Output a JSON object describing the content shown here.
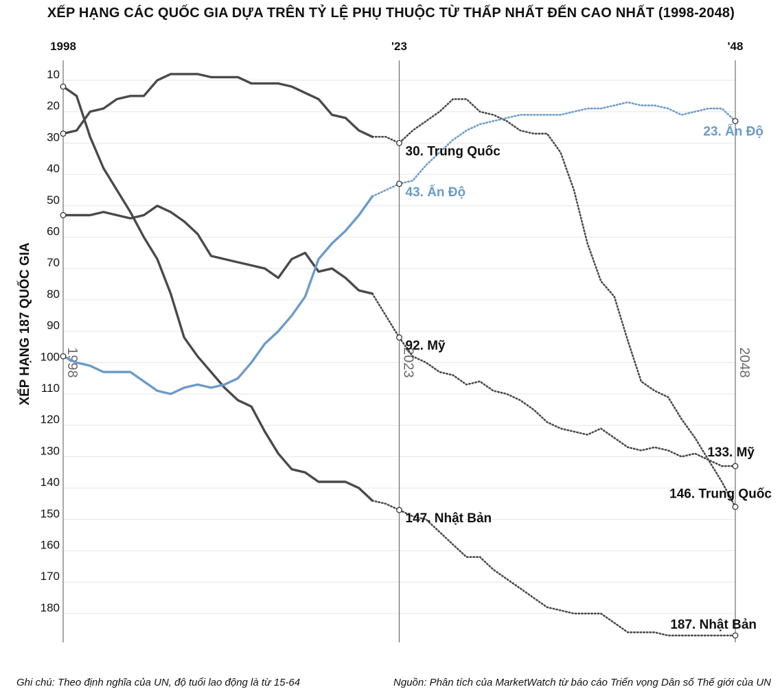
{
  "chart_data": {
    "type": "line",
    "title": "XẾP HẠNG CÁC QUỐC GIA DỰA TRÊN TỶ LỆ PHỤ THUỘC TỪ THẤP NHẤT ĐẾN CAO NHẤT (1998-2048)",
    "ylabel": "XẾP HẠNG 187 QUỐC GIA",
    "ylim": [
      5,
      188
    ],
    "xlim": [
      1998,
      2048
    ],
    "y_reversed": true,
    "y_ticks": [
      10,
      20,
      30,
      40,
      50,
      60,
      70,
      80,
      90,
      100,
      110,
      120,
      130,
      140,
      150,
      160,
      170,
      180
    ],
    "grid": true,
    "top_axis_labels": [
      {
        "x": 1998,
        "label": "1998"
      },
      {
        "x": 2023,
        "label": "'23"
      },
      {
        "x": 2048,
        "label": "'48"
      }
    ],
    "vertical_markers": [
      {
        "x": 1998,
        "label": "1998"
      },
      {
        "x": 2023,
        "label": "2023"
      },
      {
        "x": 2048,
        "label": "2048"
      }
    ],
    "series": [
      {
        "color": "#4a4a4a",
        "historical": [
          [
            1998,
            27
          ],
          [
            1999,
            26
          ],
          [
            2000,
            20
          ],
          [
            2001,
            19
          ],
          [
            2002,
            16
          ],
          [
            2003,
            15
          ],
          [
            2004,
            15
          ],
          [
            2005,
            10
          ],
          [
            2006,
            8
          ],
          [
            2007,
            8
          ],
          [
            2008,
            8
          ],
          [
            2009,
            9
          ],
          [
            2010,
            9
          ],
          [
            2011,
            9
          ],
          [
            2012,
            11
          ],
          [
            2013,
            11
          ],
          [
            2014,
            11
          ],
          [
            2015,
            12
          ],
          [
            2016,
            14
          ],
          [
            2017,
            16
          ],
          [
            2018,
            21
          ],
          [
            2019,
            22
          ],
          [
            2020,
            26
          ],
          [
            2021,
            28
          ]
        ],
        "projection": [
          [
            2021,
            28
          ],
          [
            2022,
            28
          ],
          [
            2023,
            30
          ],
          [
            2024,
            26
          ],
          [
            2025,
            23
          ],
          [
            2026,
            20
          ],
          [
            2027,
            16
          ],
          [
            2028,
            16
          ],
          [
            2029,
            20
          ],
          [
            2030,
            21
          ],
          [
            2031,
            23
          ],
          [
            2032,
            26
          ],
          [
            2033,
            27
          ],
          [
            2034,
            27
          ],
          [
            2035,
            33
          ],
          [
            2036,
            45
          ],
          [
            2037,
            62
          ],
          [
            2038,
            74
          ],
          [
            2039,
            79
          ],
          [
            2040,
            93
          ],
          [
            2041,
            106
          ],
          [
            2042,
            109
          ],
          [
            2043,
            111
          ],
          [
            2044,
            118
          ],
          [
            2045,
            124
          ],
          [
            2046,
            131
          ],
          [
            2047,
            138
          ],
          [
            2048,
            146
          ]
        ],
        "labels": [
          {
            "x": 2023,
            "y": 30,
            "text": "30. Trung Quốc"
          },
          {
            "x": 2048,
            "y": 146,
            "text": "146. Trung Quốc"
          }
        ]
      },
      {
        "color": "#4a4a4a",
        "historical": [
          [
            1998,
            53
          ],
          [
            1999,
            53
          ],
          [
            2000,
            53
          ],
          [
            2001,
            52
          ],
          [
            2002,
            53
          ],
          [
            2003,
            54
          ],
          [
            2004,
            53
          ],
          [
            2005,
            50
          ],
          [
            2006,
            52
          ],
          [
            2007,
            55
          ],
          [
            2008,
            59
          ],
          [
            2009,
            66
          ],
          [
            2010,
            67
          ],
          [
            2011,
            68
          ],
          [
            2012,
            69
          ],
          [
            2013,
            70
          ],
          [
            2014,
            73
          ],
          [
            2015,
            67
          ],
          [
            2016,
            65
          ],
          [
            2017,
            71
          ],
          [
            2018,
            70
          ],
          [
            2019,
            73
          ],
          [
            2020,
            77
          ],
          [
            2021,
            78
          ]
        ],
        "projection": [
          [
            2021,
            78
          ],
          [
            2022,
            85
          ],
          [
            2023,
            92
          ],
          [
            2024,
            98
          ],
          [
            2025,
            100
          ],
          [
            2026,
            103
          ],
          [
            2027,
            104
          ],
          [
            2028,
            107
          ],
          [
            2029,
            106
          ],
          [
            2030,
            109
          ],
          [
            2031,
            110
          ],
          [
            2032,
            112
          ],
          [
            2033,
            115
          ],
          [
            2034,
            119
          ],
          [
            2035,
            121
          ],
          [
            2036,
            122
          ],
          [
            2037,
            123
          ],
          [
            2038,
            121
          ],
          [
            2039,
            124
          ],
          [
            2040,
            127
          ],
          [
            2041,
            128
          ],
          [
            2042,
            127
          ],
          [
            2043,
            128
          ],
          [
            2044,
            130
          ],
          [
            2045,
            129
          ],
          [
            2046,
            131
          ],
          [
            2047,
            133
          ],
          [
            2048,
            133
          ]
        ],
        "labels": [
          {
            "x": 2023,
            "y": 92,
            "text": "92. Mỹ"
          },
          {
            "x": 2048,
            "y": 133,
            "text": "133. Mỹ"
          }
        ]
      },
      {
        "color": "#4a4a4a",
        "historical": [
          [
            1998,
            12
          ],
          [
            1999,
            15
          ],
          [
            2000,
            28
          ],
          [
            2001,
            38
          ],
          [
            2002,
            45
          ],
          [
            2003,
            52
          ],
          [
            2004,
            60
          ],
          [
            2005,
            67
          ],
          [
            2006,
            78
          ],
          [
            2007,
            92
          ],
          [
            2008,
            98
          ],
          [
            2009,
            103
          ],
          [
            2010,
            108
          ],
          [
            2011,
            112
          ],
          [
            2012,
            114
          ],
          [
            2013,
            122
          ],
          [
            2014,
            129
          ],
          [
            2015,
            134
          ],
          [
            2016,
            135
          ],
          [
            2017,
            138
          ],
          [
            2018,
            138
          ],
          [
            2019,
            138
          ],
          [
            2020,
            140
          ],
          [
            2021,
            144
          ]
        ],
        "projection": [
          [
            2021,
            144
          ],
          [
            2022,
            145
          ],
          [
            2023,
            147
          ],
          [
            2024,
            149
          ],
          [
            2025,
            150
          ],
          [
            2026,
            154
          ],
          [
            2027,
            158
          ],
          [
            2028,
            162
          ],
          [
            2029,
            162
          ],
          [
            2030,
            166
          ],
          [
            2031,
            169
          ],
          [
            2032,
            172
          ],
          [
            2033,
            175
          ],
          [
            2034,
            178
          ],
          [
            2035,
            179
          ],
          [
            2036,
            180
          ],
          [
            2037,
            180
          ],
          [
            2038,
            180
          ],
          [
            2039,
            183
          ],
          [
            2040,
            186
          ],
          [
            2041,
            186
          ],
          [
            2042,
            186
          ],
          [
            2043,
            187
          ],
          [
            2044,
            187
          ],
          [
            2045,
            187
          ],
          [
            2046,
            187
          ],
          [
            2047,
            187
          ],
          [
            2048,
            187
          ]
        ],
        "labels": [
          {
            "x": 2023,
            "y": 147,
            "text": "147. Nhật Bản"
          },
          {
            "x": 2048,
            "y": 187,
            "text": "187. Nhật Bản"
          }
        ]
      },
      {
        "color": "#6b9bc9",
        "historical": [
          [
            1998,
            98
          ],
          [
            1999,
            100
          ],
          [
            2000,
            101
          ],
          [
            2001,
            103
          ],
          [
            2002,
            103
          ],
          [
            2003,
            103
          ],
          [
            2004,
            106
          ],
          [
            2005,
            109
          ],
          [
            2006,
            110
          ],
          [
            2007,
            108
          ],
          [
            2008,
            107
          ],
          [
            2009,
            108
          ],
          [
            2010,
            107
          ],
          [
            2011,
            105
          ],
          [
            2012,
            100
          ],
          [
            2013,
            94
          ],
          [
            2014,
            90
          ],
          [
            2015,
            85
          ],
          [
            2016,
            79
          ],
          [
            2017,
            67
          ],
          [
            2018,
            62
          ],
          [
            2019,
            58
          ],
          [
            2020,
            53
          ],
          [
            2021,
            47
          ]
        ],
        "projection": [
          [
            2021,
            47
          ],
          [
            2022,
            45
          ],
          [
            2023,
            43
          ],
          [
            2024,
            42
          ],
          [
            2025,
            37
          ],
          [
            2026,
            33
          ],
          [
            2027,
            29
          ],
          [
            2028,
            26
          ],
          [
            2029,
            24
          ],
          [
            2030,
            23
          ],
          [
            2031,
            22
          ],
          [
            2032,
            21
          ],
          [
            2033,
            21
          ],
          [
            2034,
            21
          ],
          [
            2035,
            21
          ],
          [
            2036,
            20
          ],
          [
            2037,
            19
          ],
          [
            2038,
            19
          ],
          [
            2039,
            18
          ],
          [
            2040,
            17
          ],
          [
            2041,
            18
          ],
          [
            2042,
            18
          ],
          [
            2043,
            19
          ],
          [
            2044,
            21
          ],
          [
            2045,
            20
          ],
          [
            2046,
            19
          ],
          [
            2047,
            19
          ],
          [
            2048,
            23
          ]
        ],
        "labels": [
          {
            "x": 2023,
            "y": 43,
            "text": "43. Ấn Độ"
          },
          {
            "x": 2048,
            "y": 23,
            "text": "23. Ấn Độ"
          }
        ]
      }
    ]
  },
  "footer": {
    "note": "Ghi chú: Theo định nghĩa của UN, độ tuổi lao động là từ 15-64",
    "source": "Nguồn: Phân tích của MarketWatch từ báo cáo Triển vọng Dân số Thế giới của UN"
  }
}
